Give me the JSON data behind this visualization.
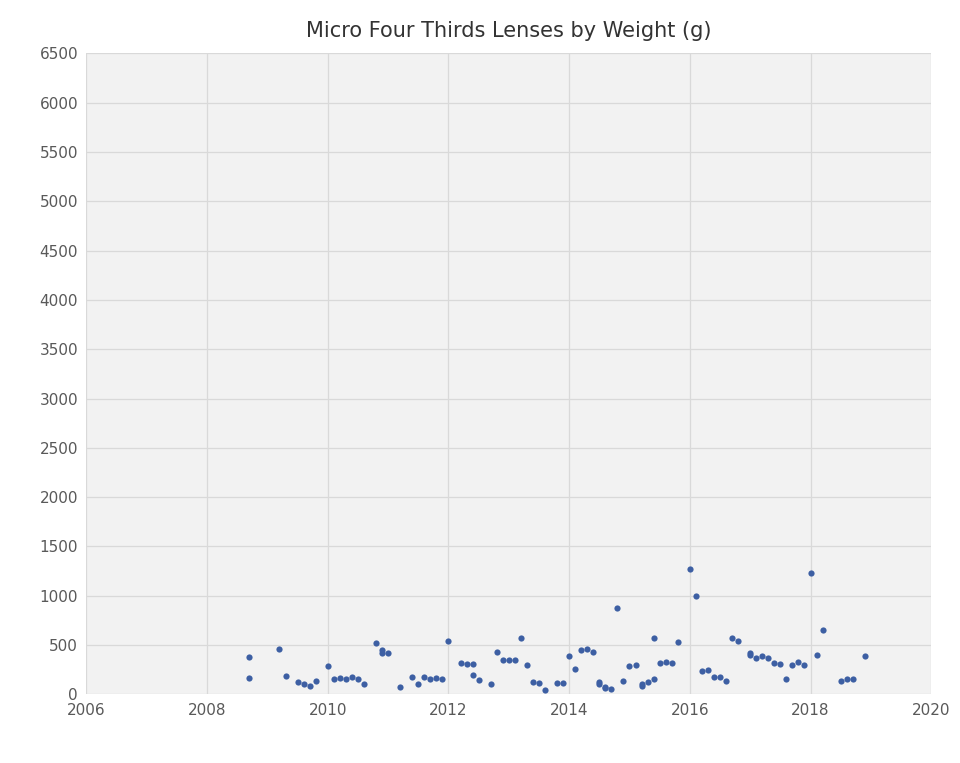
{
  "title": "Micro Four Thirds Lenses by Weight (g)",
  "xlim": [
    2006,
    2020
  ],
  "ylim": [
    0,
    6500
  ],
  "xticks": [
    2006,
    2008,
    2010,
    2012,
    2014,
    2016,
    2018,
    2020
  ],
  "yticks": [
    0,
    500,
    1000,
    1500,
    2000,
    2500,
    3000,
    3500,
    4000,
    4500,
    5000,
    5500,
    6000,
    6500
  ],
  "dot_color": "#3D5FA3",
  "background_color": "#ffffff",
  "plot_bg_color": "#f2f2f2",
  "grid_color": "#d9d9d9",
  "title_fontsize": 15,
  "tick_fontsize": 11,
  "tick_color": "#595959",
  "points": [
    [
      2008.7,
      375
    ],
    [
      2008.7,
      165
    ],
    [
      2009.2,
      460
    ],
    [
      2009.3,
      185
    ],
    [
      2009.5,
      130
    ],
    [
      2009.6,
      100
    ],
    [
      2009.7,
      80
    ],
    [
      2009.8,
      140
    ],
    [
      2010.0,
      290
    ],
    [
      2010.1,
      155
    ],
    [
      2010.2,
      170
    ],
    [
      2010.3,
      160
    ],
    [
      2010.4,
      175
    ],
    [
      2010.5,
      155
    ],
    [
      2010.6,
      105
    ],
    [
      2010.8,
      520
    ],
    [
      2010.9,
      450
    ],
    [
      2010.9,
      415
    ],
    [
      2011.0,
      415
    ],
    [
      2011.2,
      75
    ],
    [
      2011.4,
      175
    ],
    [
      2011.5,
      105
    ],
    [
      2011.6,
      180
    ],
    [
      2011.7,
      155
    ],
    [
      2011.8,
      165
    ],
    [
      2011.9,
      160
    ],
    [
      2012.0,
      545
    ],
    [
      2012.2,
      320
    ],
    [
      2012.3,
      305
    ],
    [
      2012.4,
      305
    ],
    [
      2012.4,
      200
    ],
    [
      2012.5,
      150
    ],
    [
      2012.7,
      100
    ],
    [
      2012.8,
      430
    ],
    [
      2012.9,
      350
    ],
    [
      2013.0,
      345
    ],
    [
      2013.1,
      350
    ],
    [
      2013.2,
      570
    ],
    [
      2013.3,
      295
    ],
    [
      2013.4,
      130
    ],
    [
      2013.5,
      115
    ],
    [
      2013.6,
      40
    ],
    [
      2013.8,
      115
    ],
    [
      2013.9,
      115
    ],
    [
      2014.0,
      385
    ],
    [
      2014.1,
      260
    ],
    [
      2014.2,
      450
    ],
    [
      2014.3,
      455
    ],
    [
      2014.4,
      430
    ],
    [
      2014.5,
      130
    ],
    [
      2014.5,
      105
    ],
    [
      2014.6,
      70
    ],
    [
      2014.6,
      60
    ],
    [
      2014.7,
      55
    ],
    [
      2014.8,
      880
    ],
    [
      2014.9,
      135
    ],
    [
      2015.0,
      285
    ],
    [
      2015.1,
      300
    ],
    [
      2015.2,
      100
    ],
    [
      2015.2,
      80
    ],
    [
      2015.3,
      130
    ],
    [
      2015.4,
      155
    ],
    [
      2015.4,
      575
    ],
    [
      2015.5,
      315
    ],
    [
      2015.6,
      325
    ],
    [
      2015.7,
      320
    ],
    [
      2015.8,
      530
    ],
    [
      2016.0,
      1270
    ],
    [
      2016.1,
      1000
    ],
    [
      2016.2,
      235
    ],
    [
      2016.3,
      250
    ],
    [
      2016.4,
      175
    ],
    [
      2016.5,
      180
    ],
    [
      2016.6,
      135
    ],
    [
      2016.7,
      570
    ],
    [
      2016.8,
      545
    ],
    [
      2017.0,
      415
    ],
    [
      2017.0,
      400
    ],
    [
      2017.1,
      365
    ],
    [
      2017.2,
      390
    ],
    [
      2017.3,
      365
    ],
    [
      2017.4,
      320
    ],
    [
      2017.5,
      310
    ],
    [
      2017.6,
      155
    ],
    [
      2017.7,
      300
    ],
    [
      2017.8,
      325
    ],
    [
      2017.9,
      295
    ],
    [
      2018.0,
      1235
    ],
    [
      2018.1,
      395
    ],
    [
      2018.2,
      650
    ],
    [
      2018.5,
      135
    ],
    [
      2018.6,
      155
    ],
    [
      2018.7,
      155
    ],
    [
      2018.9,
      385
    ]
  ]
}
